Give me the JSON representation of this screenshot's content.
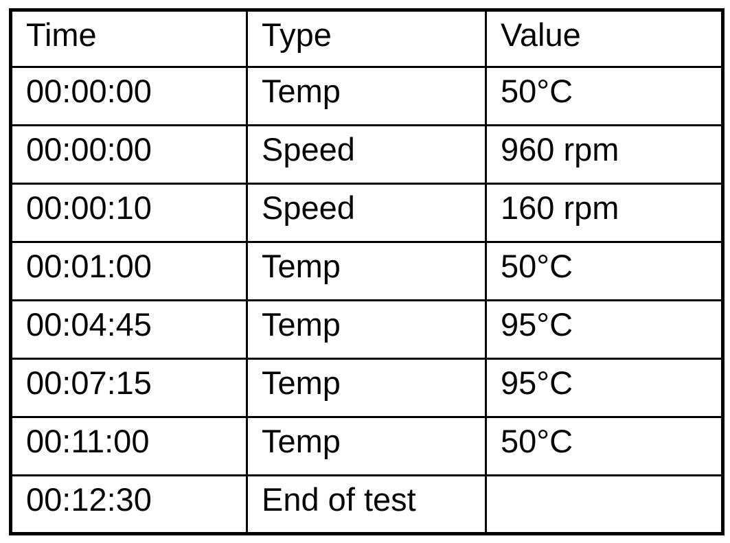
{
  "table": {
    "border_color": "#000000",
    "text_color": "#050505",
    "background_color": "#ffffff",
    "columns": [
      {
        "label": "Time"
      },
      {
        "label": "Type"
      },
      {
        "label": "Value"
      }
    ],
    "rows": [
      {
        "time": "00:00:00",
        "type": "Temp",
        "value": "50°C"
      },
      {
        "time": "00:00:00",
        "type": "Speed",
        "value": "960 rpm"
      },
      {
        "time": "00:00:10",
        "type": "Speed",
        "value": "160 rpm"
      },
      {
        "time": "00:01:00",
        "type": "Temp",
        "value": "50°C"
      },
      {
        "time": "00:04:45",
        "type": "Temp",
        "value": "95°C"
      },
      {
        "time": "00:07:15",
        "type": "Temp",
        "value": "95°C"
      },
      {
        "time": "00:11:00",
        "type": "Temp",
        "value": "50°C"
      },
      {
        "time": "00:12:30",
        "type": "End of test",
        "value": ""
      }
    ]
  }
}
